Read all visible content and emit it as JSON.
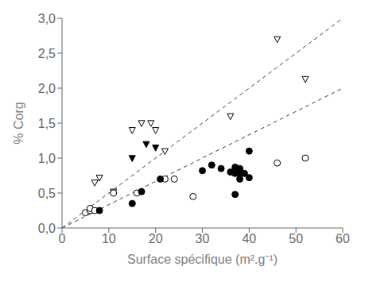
{
  "chart_data": {
    "type": "scatter",
    "xlabel": "Surface spécifique (m².g⁻¹)",
    "ylabel": "% Corg",
    "xlim": [
      0,
      60
    ],
    "ylim": [
      0.0,
      3.0
    ],
    "xticks": [
      0,
      10,
      20,
      30,
      40,
      50,
      60
    ],
    "yticks": [
      {
        "value": 0.0,
        "label": "0,0"
      },
      {
        "value": 0.5,
        "label": "0,5"
      },
      {
        "value": 1.0,
        "label": "1,0"
      },
      {
        "value": 1.5,
        "label": "1,5"
      },
      {
        "value": 2.0,
        "label": "2,0"
      },
      {
        "value": 2.5,
        "label": "2,5"
      },
      {
        "value": 3.0,
        "label": "3,0"
      }
    ],
    "grid": false,
    "series": [
      {
        "type": "line",
        "line_style": "dashed",
        "color": "#444444",
        "x": [
          0,
          60
        ],
        "values": [
          0.0,
          3.0
        ]
      },
      {
        "type": "line",
        "line_style": "dashed",
        "color": "#444444",
        "x": [
          0,
          60
        ],
        "values": [
          0.0,
          2.0
        ]
      },
      {
        "type": "scatter",
        "marker": "open-triangle-down",
        "color": "#000000",
        "x": [
          7,
          8,
          11,
          15,
          17,
          19,
          20,
          22,
          36,
          46,
          52
        ],
        "values": [
          0.65,
          0.72,
          0.52,
          1.4,
          1.5,
          1.5,
          1.4,
          1.1,
          1.6,
          2.7,
          2.13
        ]
      },
      {
        "type": "scatter",
        "marker": "filled-triangle-down",
        "color": "#000000",
        "x": [
          15,
          18,
          20
        ],
        "values": [
          1.0,
          1.2,
          1.15
        ]
      },
      {
        "type": "scatter",
        "marker": "open-circle",
        "color": "#000000",
        "x": [
          5,
          6,
          6,
          7,
          11,
          16,
          22,
          24,
          28,
          46,
          52
        ],
        "values": [
          0.22,
          0.25,
          0.28,
          0.25,
          0.5,
          0.5,
          0.7,
          0.7,
          0.45,
          0.93,
          1.0
        ]
      },
      {
        "type": "scatter",
        "marker": "filled-circle",
        "color": "#000000",
        "x": [
          8,
          15,
          17,
          21,
          30,
          32,
          34,
          36,
          37,
          37,
          38,
          38,
          38,
          38,
          39,
          40,
          40,
          37
        ],
        "values": [
          0.25,
          0.35,
          0.52,
          0.7,
          0.82,
          0.9,
          0.85,
          0.8,
          0.78,
          0.87,
          0.78,
          0.82,
          0.7,
          0.85,
          0.78,
          0.72,
          1.1,
          0.48
        ]
      }
    ]
  }
}
